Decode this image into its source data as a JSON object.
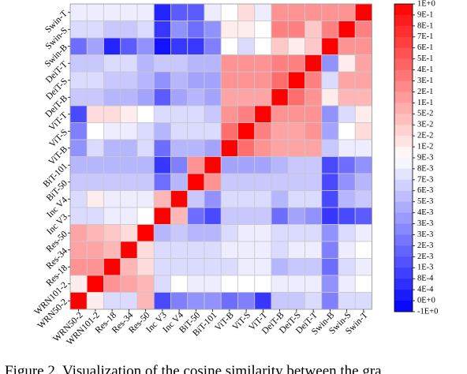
{
  "caption": "Figure 2. Visualization of the cosine similarity between the gra",
  "chart_data": {
    "type": "heatmap",
    "x_labels": [
      "WRN50-2",
      "WRN101-2",
      "Res-18",
      "Res-34",
      "Res-50",
      "Inc V3",
      "Inc V4",
      "BiT-50",
      "BiT-101",
      "ViT-B",
      "ViT-S",
      "ViT-T",
      "DeiT-B",
      "DeiT-S",
      "DeiT-T",
      "Swin-B",
      "Swin-S",
      "Swin-T"
    ],
    "y_labels": [
      "Swin-T",
      "Swin-S",
      "Swin-B",
      "DeiT-T",
      "DeiT-S",
      "DeiT-B",
      "ViT-T",
      "ViT-S",
      "ViT-B",
      "BiT-101",
      "BiT-50",
      "Inc V4",
      "Inc V3",
      "Res-50",
      "Res-34",
      "Res-18",
      "WRN101-2",
      "WRN50-2"
    ],
    "colorbar_ticks": [
      "1E+0",
      "9E-1",
      "8E-1",
      "7E-1",
      "6E-1",
      "5E-1",
      "4E-1",
      "3E-1",
      "2E-1",
      "1E-1",
      "5E-2",
      "3E-2",
      "2E-2",
      "1E-2",
      "9E-3",
      "8E-3",
      "7E-3",
      "6E-3",
      "5E-3",
      "4E-3",
      "3E-3",
      "3E-3",
      "2E-3",
      "2E-3",
      "1E-3",
      "8E-4",
      "4E-4",
      "0E+0",
      "-1E+0"
    ],
    "colorbar_colors": {
      "top": "#ff0000",
      "middle": "#ffffff",
      "bottom": "#0000ff"
    },
    "levels_note": "cell values are colorbar level indices: 0 = -1E+0 (blue) ... 14 = 5E-3 (white) ... 28 = 1E+0 (red)",
    "values": [
      [
        13,
        13,
        13,
        13,
        13,
        2,
        5,
        5,
        13,
        14,
        16,
        13,
        20,
        20,
        20,
        20,
        20,
        28
      ],
      [
        12,
        12,
        11,
        11,
        12,
        3,
        8,
        6,
        8,
        15,
        15,
        14,
        21,
        21,
        17,
        21,
        28,
        21
      ],
      [
        6,
        9,
        2,
        5,
        8,
        1,
        3,
        3,
        7,
        14,
        12,
        14,
        17,
        15,
        17,
        28,
        20,
        20
      ],
      [
        11,
        11,
        12,
        12,
        10,
        11,
        11,
        10,
        10,
        20,
        20,
        20,
        21,
        21,
        28,
        8,
        15,
        19
      ],
      [
        12,
        12,
        11,
        11,
        10,
        8,
        10,
        9,
        9,
        20,
        20,
        20,
        22,
        28,
        21,
        12,
        19,
        19
      ],
      [
        11,
        11,
        10,
        10,
        9,
        5,
        9,
        10,
        9,
        19,
        19,
        19,
        28,
        22,
        20,
        15,
        18,
        18
      ],
      [
        4,
        16,
        16,
        15,
        14,
        12,
        12,
        12,
        11,
        20,
        21,
        28,
        20,
        20,
        20,
        8,
        12,
        15
      ],
      [
        7,
        14,
        13,
        13,
        12,
        10,
        12,
        12,
        12,
        22,
        28,
        21,
        19,
        19,
        20,
        9,
        14,
        16
      ],
      [
        8,
        12,
        10,
        10,
        12,
        6,
        10,
        10,
        9,
        28,
        22,
        20,
        19,
        19,
        19,
        11,
        13,
        13
      ],
      [
        10,
        10,
        10,
        10,
        10,
        3,
        7,
        20,
        28,
        9,
        9,
        9,
        10,
        11,
        11,
        4,
        6,
        8
      ],
      [
        11,
        11,
        11,
        11,
        11,
        6,
        10,
        28,
        20,
        11,
        11,
        11,
        11,
        11,
        11,
        4,
        8,
        10
      ],
      [
        12,
        15,
        13,
        13,
        13,
        18,
        28,
        11,
        8,
        12,
        12,
        12,
        10,
        12,
        12,
        4,
        10,
        11
      ],
      [
        12,
        12,
        13,
        13,
        14,
        28,
        18,
        6,
        4,
        11,
        11,
        11,
        6,
        9,
        8,
        3,
        4,
        5
      ],
      [
        19,
        18,
        17,
        16,
        28,
        10,
        11,
        10,
        10,
        12,
        13,
        13,
        12,
        12,
        12,
        8,
        12,
        13
      ],
      [
        19,
        19,
        18,
        28,
        16,
        12,
        12,
        12,
        12,
        13,
        13,
        13,
        12,
        13,
        13,
        7,
        13,
        14
      ],
      [
        20,
        20,
        28,
        18,
        16,
        12,
        12,
        12,
        12,
        12,
        13,
        13,
        10,
        11,
        11,
        6,
        12,
        13
      ],
      [
        15,
        28,
        20,
        19,
        18,
        12,
        14,
        13,
        13,
        14,
        14,
        14,
        13,
        13,
        13,
        8,
        13,
        14
      ],
      [
        28,
        15,
        12,
        12,
        18,
        4,
        7,
        8,
        8,
        6,
        7,
        3,
        11,
        11,
        12,
        7,
        12,
        12
      ]
    ]
  }
}
